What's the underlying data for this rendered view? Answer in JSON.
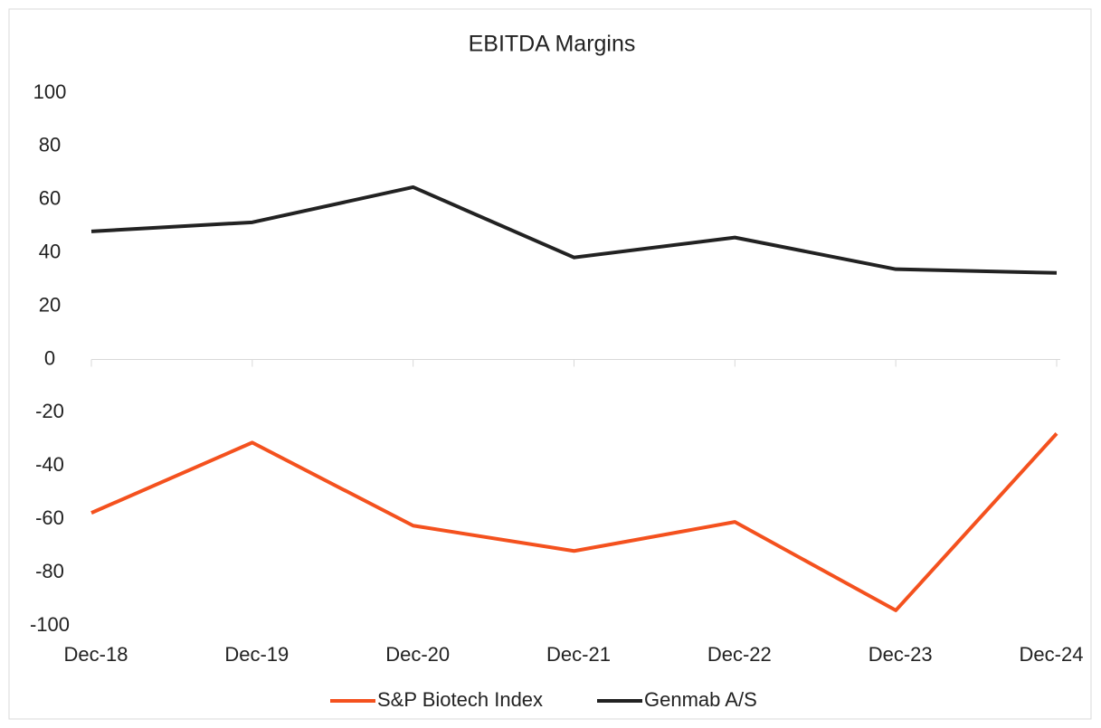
{
  "chart_data": {
    "type": "line",
    "title": "EBITDA Margins",
    "categories": [
      "Dec-18",
      "Dec-19",
      "Dec-20",
      "Dec-21",
      "Dec-22",
      "Dec-23",
      "Dec-24"
    ],
    "series": [
      {
        "name": "S&P Biotech Index",
        "color": "#f4511e",
        "values": [
          -57.6,
          -31.2,
          -62.4,
          -71.9,
          -61,
          -94.2,
          -27.8
        ]
      },
      {
        "name": "Genmab A/S",
        "color": "#222222",
        "values": [
          48.1,
          51.5,
          64.7,
          38.3,
          45.8,
          33.9,
          32.5
        ]
      }
    ],
    "ylim": [
      -100,
      100
    ],
    "yticks": [
      -100,
      -80,
      -60,
      -40,
      -20,
      0,
      20,
      40,
      60,
      80,
      100
    ],
    "grid": false,
    "legend": "bottom"
  }
}
